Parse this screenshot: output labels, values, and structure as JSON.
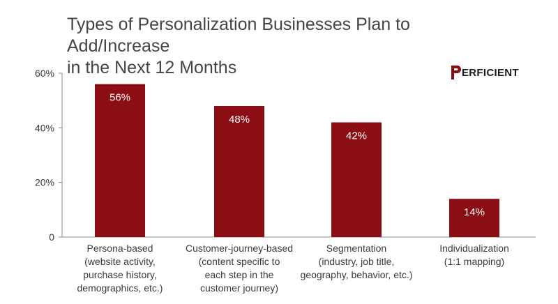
{
  "brand": {
    "logo_text": "ERFICIENT",
    "brand_color": "#8b0e14"
  },
  "chart_data": {
    "type": "bar",
    "title_lines": [
      "Types of Personalization Businesses Plan to Add/Increase",
      "in the Next 12 Months"
    ],
    "xlabel": "",
    "ylabel": "",
    "categories": [
      [
        "Persona-based",
        "(website activity,",
        "purchase history,",
        "demographics, etc.)"
      ],
      [
        "Customer-journey-based",
        "(content specific to",
        "each step in the",
        "customer journey)"
      ],
      [
        "Segmentation",
        "(industry, job title,",
        "geography, behavior, etc.)"
      ],
      [
        "Individualization",
        "(1:1 mapping)"
      ]
    ],
    "values": [
      56,
      48,
      42,
      14
    ],
    "data_labels": [
      "56%",
      "48%",
      "42%",
      "14%"
    ],
    "ylim": [
      0,
      60
    ],
    "y_ticks": [
      0,
      20,
      40,
      60
    ],
    "y_tick_labels": [
      "0",
      "20%",
      "40%",
      "60%"
    ],
    "bar_color": "#8b0e14",
    "grid": false,
    "legend": "none"
  }
}
